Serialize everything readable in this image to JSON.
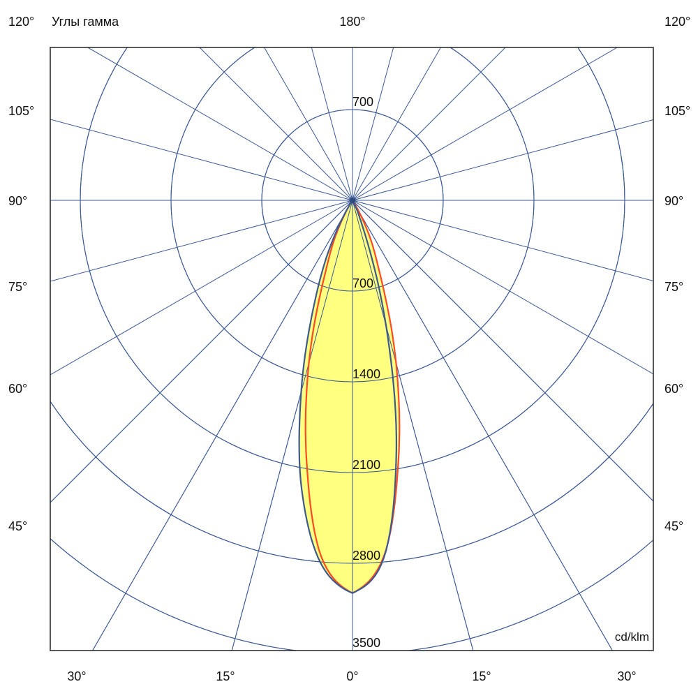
{
  "chart_data": {
    "type": "polar",
    "title": "Углы гамма",
    "unit_label": "cd/klm",
    "radial_ticks": [
      700,
      1400,
      2100,
      2800,
      3500
    ],
    "top_radial_tick": "700",
    "radial_range": [
      0,
      3500
    ],
    "angle_grid_step_deg": 15,
    "grid": true,
    "left_angle_labels": [
      "120°",
      "105°",
      "90°",
      "75°",
      "60°",
      "45°"
    ],
    "right_angle_labels": [
      "120°",
      "105°",
      "90°",
      "75°",
      "60°",
      "45°"
    ],
    "bottom_angle_labels": [
      "30°",
      "15°",
      "0°",
      "15°",
      "30°"
    ],
    "top_angle_label": "180°",
    "gamma": [
      0,
      5,
      10,
      15,
      20,
      25,
      30,
      35
    ],
    "series": [
      {
        "side": "left",
        "color": "#3d5a8f",
        "values": [
          3030,
          2810,
          2260,
          1530,
          880,
          450,
          120,
          0
        ]
      },
      {
        "side": "right",
        "color": "#3d5a8f",
        "values": [
          3030,
          2770,
          1950,
          1000,
          300,
          80,
          0,
          0
        ]
      },
      {
        "side": "both",
        "color": "#ff4a24",
        "values": [
          3030,
          2760,
          2040,
          1300,
          650,
          330,
          90,
          0
        ]
      }
    ],
    "fill_color": "#ffff80",
    "grid_color": "#3a5896"
  }
}
